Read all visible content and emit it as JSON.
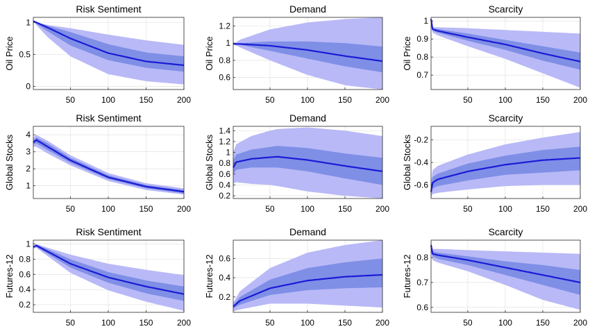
{
  "chart_data": [
    {
      "id": "p1",
      "type": "line",
      "title": "Risk Sentiment",
      "ylabel": "Oil Price",
      "xlim": [
        1,
        200
      ],
      "ylim": [
        -0.05,
        1.08
      ],
      "xticks": [
        50,
        100,
        150,
        200
      ],
      "yticks": [
        0,
        0.5,
        1
      ],
      "yticklabels": [
        "0",
        "0.5",
        "1"
      ],
      "x": [
        1,
        5,
        20,
        50,
        100,
        150,
        200
      ],
      "median": [
        1.02,
        1.0,
        0.92,
        0.75,
        0.52,
        0.39,
        0.33
      ],
      "inner_lower": [
        1.02,
        0.98,
        0.86,
        0.64,
        0.41,
        0.29,
        0.23
      ],
      "inner_upper": [
        1.02,
        1.0,
        0.95,
        0.85,
        0.66,
        0.53,
        0.47
      ],
      "outer_lower": [
        1.02,
        0.96,
        0.77,
        0.47,
        0.19,
        0.08,
        0.03
      ],
      "outer_upper": [
        1.04,
        1.0,
        0.96,
        0.91,
        0.81,
        0.72,
        0.65
      ]
    },
    {
      "id": "p2",
      "type": "line",
      "title": "Demand",
      "ylabel": "Oil Price",
      "xlim": [
        1,
        200
      ],
      "ylim": [
        0.46,
        1.3
      ],
      "xticks": [
        50,
        100,
        150,
        200
      ],
      "yticks": [
        0.6,
        0.8,
        1,
        1.2
      ],
      "yticklabels": [
        "0.6",
        "0.8",
        "1",
        "1.2"
      ],
      "x": [
        1,
        10,
        50,
        100,
        150,
        200
      ],
      "median": [
        0.99,
        0.99,
        0.97,
        0.92,
        0.85,
        0.79
      ],
      "inner_lower": [
        0.99,
        0.98,
        0.91,
        0.82,
        0.73,
        0.66
      ],
      "inner_upper": [
        0.99,
        1.0,
        1.02,
        1.02,
        1.0,
        0.96
      ],
      "outer_lower": [
        0.99,
        0.95,
        0.8,
        0.63,
        0.51,
        0.46
      ],
      "outer_upper": [
        0.99,
        1.04,
        1.16,
        1.24,
        1.28,
        1.3
      ]
    },
    {
      "id": "p3",
      "type": "line",
      "title": "Scarcity",
      "ylabel": "Oil Price",
      "xlim": [
        1,
        200
      ],
      "ylim": [
        0.62,
        1.02
      ],
      "xticks": [
        50,
        100,
        150,
        200
      ],
      "yticks": [
        0.7,
        0.8,
        0.9,
        1
      ],
      "yticklabels": [
        "0.7",
        "0.8",
        "0.9",
        "1"
      ],
      "x": [
        1,
        3,
        10,
        50,
        100,
        150,
        200
      ],
      "median": [
        1.01,
        0.955,
        0.945,
        0.91,
        0.87,
        0.82,
        0.775
      ],
      "inner_lower": [
        1.01,
        0.945,
        0.935,
        0.89,
        0.84,
        0.78,
        0.73
      ],
      "inner_upper": [
        1.01,
        0.96,
        0.955,
        0.93,
        0.895,
        0.86,
        0.825
      ],
      "outer_lower": [
        1.01,
        0.935,
        0.92,
        0.86,
        0.79,
        0.71,
        0.63
      ],
      "outer_upper": [
        1.02,
        0.965,
        0.965,
        0.96,
        0.95,
        0.94,
        0.93
      ]
    },
    {
      "id": "p4",
      "type": "line",
      "title": "Risk Sentiment",
      "ylabel": "Global Stocks",
      "xlim": [
        1,
        200
      ],
      "ylim": [
        0.25,
        4.5
      ],
      "xticks": [
        50,
        100,
        150,
        200
      ],
      "yticks": [
        1,
        2,
        3,
        4
      ],
      "yticklabels": [
        "1",
        "2",
        "3",
        "4"
      ],
      "x": [
        1,
        5,
        20,
        50,
        100,
        150,
        200
      ],
      "median": [
        3.55,
        3.7,
        3.3,
        2.5,
        1.5,
        0.95,
        0.65
      ],
      "inner_lower": [
        3.45,
        3.5,
        3.1,
        2.35,
        1.4,
        0.85,
        0.55
      ],
      "inner_upper": [
        3.65,
        3.85,
        3.5,
        2.65,
        1.62,
        1.05,
        0.75
      ],
      "outer_lower": [
        3.3,
        3.3,
        2.9,
        2.2,
        1.28,
        0.75,
        0.48
      ],
      "outer_upper": [
        3.85,
        4.0,
        3.65,
        2.8,
        1.75,
        1.15,
        0.85
      ]
    },
    {
      "id": "p5",
      "type": "line",
      "title": "Demand",
      "ylabel": "Global Stocks",
      "xlim": [
        1,
        200
      ],
      "ylim": [
        0.15,
        1.48
      ],
      "xticks": [
        50,
        100,
        150,
        200
      ],
      "yticks": [
        0.2,
        0.4,
        0.6,
        0.8,
        1,
        1.2,
        1.4
      ],
      "yticklabels": [
        "0.2",
        "0.4",
        "0.6",
        "0.8",
        "1",
        "1.2",
        "1.4"
      ],
      "x": [
        1,
        5,
        25,
        50,
        60,
        100,
        150,
        200
      ],
      "median": [
        0.72,
        0.82,
        0.88,
        0.91,
        0.92,
        0.86,
        0.75,
        0.65
      ],
      "inner_lower": [
        0.6,
        0.68,
        0.72,
        0.72,
        0.72,
        0.65,
        0.52,
        0.4
      ],
      "inner_upper": [
        0.85,
        0.96,
        1.05,
        1.1,
        1.12,
        1.08,
        0.98,
        0.9
      ],
      "outer_lower": [
        0.42,
        0.45,
        0.42,
        0.4,
        0.38,
        0.28,
        0.2,
        0.15
      ],
      "outer_upper": [
        1.0,
        1.15,
        1.3,
        1.4,
        1.43,
        1.46,
        1.4,
        1.3
      ]
    },
    {
      "id": "p6",
      "type": "line",
      "title": "Scarcity",
      "ylabel": "Global Stocks",
      "xlim": [
        1,
        200
      ],
      "ylim": [
        -0.72,
        -0.08
      ],
      "xticks": [
        50,
        100,
        150,
        200
      ],
      "yticks": [
        -0.6,
        -0.4,
        -0.2
      ],
      "yticklabels": [
        "-0.6",
        "-0.4",
        "-0.2"
      ],
      "x": [
        1,
        3,
        10,
        50,
        100,
        150,
        200
      ],
      "median": [
        -0.66,
        -0.58,
        -0.55,
        -0.48,
        -0.42,
        -0.38,
        -0.36
      ],
      "inner_lower": [
        -0.7,
        -0.63,
        -0.61,
        -0.56,
        -0.51,
        -0.49,
        -0.47
      ],
      "inner_upper": [
        -0.62,
        -0.53,
        -0.5,
        -0.41,
        -0.34,
        -0.29,
        -0.26
      ],
      "outer_lower": [
        -0.72,
        -0.68,
        -0.67,
        -0.64,
        -0.61,
        -0.6,
        -0.6
      ],
      "outer_upper": [
        -0.58,
        -0.47,
        -0.43,
        -0.33,
        -0.24,
        -0.18,
        -0.13
      ]
    },
    {
      "id": "p7",
      "type": "line",
      "title": "Risk Sentiment",
      "ylabel": "Futures-12",
      "xlim": [
        1,
        200
      ],
      "ylim": [
        0.1,
        1.05
      ],
      "xticks": [
        50,
        100,
        150,
        200
      ],
      "yticks": [
        0.2,
        0.4,
        0.6,
        0.8,
        1
      ],
      "yticklabels": [
        "0.2",
        "0.4",
        "0.6",
        "0.8",
        "1"
      ],
      "x": [
        1,
        5,
        20,
        50,
        100,
        150,
        200
      ],
      "median": [
        0.96,
        0.98,
        0.9,
        0.74,
        0.56,
        0.44,
        0.34
      ],
      "inner_lower": [
        0.95,
        0.96,
        0.87,
        0.69,
        0.49,
        0.35,
        0.25
      ],
      "inner_upper": [
        0.97,
        0.99,
        0.93,
        0.8,
        0.63,
        0.52,
        0.44
      ],
      "outer_lower": [
        0.94,
        0.95,
        0.84,
        0.62,
        0.39,
        0.24,
        0.12
      ],
      "outer_upper": [
        0.98,
        1.0,
        0.95,
        0.86,
        0.74,
        0.66,
        0.59
      ]
    },
    {
      "id": "p8",
      "type": "line",
      "title": "Demand",
      "ylabel": "Futures-12",
      "xlim": [
        1,
        200
      ],
      "ylim": [
        0.04,
        0.79
      ],
      "xticks": [
        50,
        100,
        150,
        200
      ],
      "yticks": [
        0.2,
        0.4,
        0.6
      ],
      "yticklabels": [
        "0.2",
        "0.4",
        "0.6"
      ],
      "x": [
        1,
        10,
        50,
        100,
        150,
        200
      ],
      "median": [
        0.1,
        0.16,
        0.29,
        0.37,
        0.41,
        0.43
      ],
      "inner_lower": [
        0.08,
        0.12,
        0.22,
        0.27,
        0.29,
        0.3
      ],
      "inner_upper": [
        0.12,
        0.2,
        0.38,
        0.5,
        0.56,
        0.6
      ],
      "outer_lower": [
        0.05,
        0.07,
        0.13,
        0.13,
        0.11,
        0.09
      ],
      "outer_upper": [
        0.14,
        0.26,
        0.5,
        0.66,
        0.74,
        0.79
      ]
    },
    {
      "id": "p9",
      "type": "line",
      "title": "Scarcity",
      "ylabel": "Futures-12",
      "xlim": [
        1,
        200
      ],
      "ylim": [
        0.58,
        0.87
      ],
      "xticks": [
        50,
        100,
        150,
        200
      ],
      "yticks": [
        0.6,
        0.7,
        0.8
      ],
      "yticklabels": [
        "0.6",
        "0.7",
        "0.8"
      ],
      "x": [
        1,
        3,
        10,
        50,
        100,
        150,
        200
      ],
      "median": [
        0.85,
        0.815,
        0.81,
        0.79,
        0.76,
        0.73,
        0.7
      ],
      "inner_lower": [
        0.84,
        0.805,
        0.795,
        0.77,
        0.73,
        0.69,
        0.65
      ],
      "inner_upper": [
        0.86,
        0.825,
        0.82,
        0.805,
        0.785,
        0.77,
        0.75
      ],
      "outer_lower": [
        0.83,
        0.79,
        0.78,
        0.745,
        0.69,
        0.63,
        0.59
      ],
      "outer_upper": [
        0.87,
        0.835,
        0.835,
        0.83,
        0.825,
        0.82,
        0.815
      ]
    }
  ]
}
